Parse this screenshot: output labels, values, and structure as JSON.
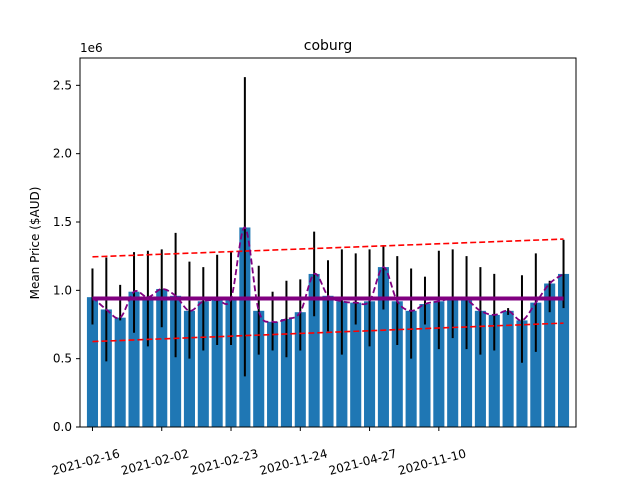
{
  "chart_data": {
    "type": "bar",
    "title": "coburg",
    "ylabel": "Mean Price ($AUD)",
    "xlabel": "",
    "y_multiplier_label": "1e6",
    "ylim": [
      0,
      2.7
    ],
    "ytick_values": [
      0.0,
      0.5,
      1.0,
      1.5,
      2.0,
      2.5
    ],
    "ytick_labels": [
      "0.0",
      "0.5",
      "1.0",
      "1.5",
      "2.0",
      "2.5"
    ],
    "xtick_labels": [
      "2021-02-16",
      "2021-02-02",
      "2021-02-23",
      "2020-11-24",
      "2021-04-27",
      "2020-11-10"
    ],
    "xtick_positions": [
      0,
      5,
      10,
      15,
      20,
      25
    ],
    "values": [
      0.95,
      0.86,
      0.8,
      0.99,
      0.95,
      1.01,
      0.96,
      0.85,
      0.92,
      0.93,
      0.94,
      1.46,
      0.85,
      0.77,
      0.79,
      0.84,
      1.12,
      0.96,
      0.92,
      0.91,
      0.92,
      1.17,
      0.92,
      0.85,
      0.9,
      0.92,
      0.94,
      0.93,
      0.85,
      0.82,
      0.85,
      0.78,
      0.91,
      1.05,
      1.12
    ],
    "error_low": [
      0.75,
      0.48,
      0.78,
      0.69,
      0.59,
      0.73,
      0.51,
      0.5,
      0.56,
      0.6,
      0.6,
      0.37,
      0.53,
      0.56,
      0.51,
      0.56,
      0.81,
      0.7,
      0.53,
      0.75,
      0.59,
      0.86,
      0.6,
      0.5,
      0.75,
      0.57,
      0.65,
      0.57,
      0.53,
      0.56,
      0.82,
      0.47,
      0.55,
      0.84,
      0.87
    ],
    "error_high": [
      1.16,
      1.24,
      1.04,
      1.28,
      1.29,
      1.3,
      1.42,
      1.21,
      1.17,
      1.26,
      1.28,
      2.56,
      1.18,
      0.99,
      1.07,
      1.08,
      1.43,
      1.22,
      1.3,
      1.27,
      1.3,
      1.33,
      1.25,
      1.16,
      1.1,
      1.29,
      1.3,
      1.25,
      1.17,
      1.12,
      0.87,
      1.11,
      1.27,
      1.07,
      1.37
    ],
    "mean_line": 0.94,
    "upper_trend": [
      1.245,
      1.375
    ],
    "lower_trend": [
      0.625,
      0.76
    ],
    "colors": {
      "bars": "#1f77b4",
      "error_bars": "#000000",
      "mean_line": "#800080",
      "smoothed_line": "#800080",
      "trend_lines": "#ff0000"
    },
    "grid": false,
    "legend": "none"
  }
}
